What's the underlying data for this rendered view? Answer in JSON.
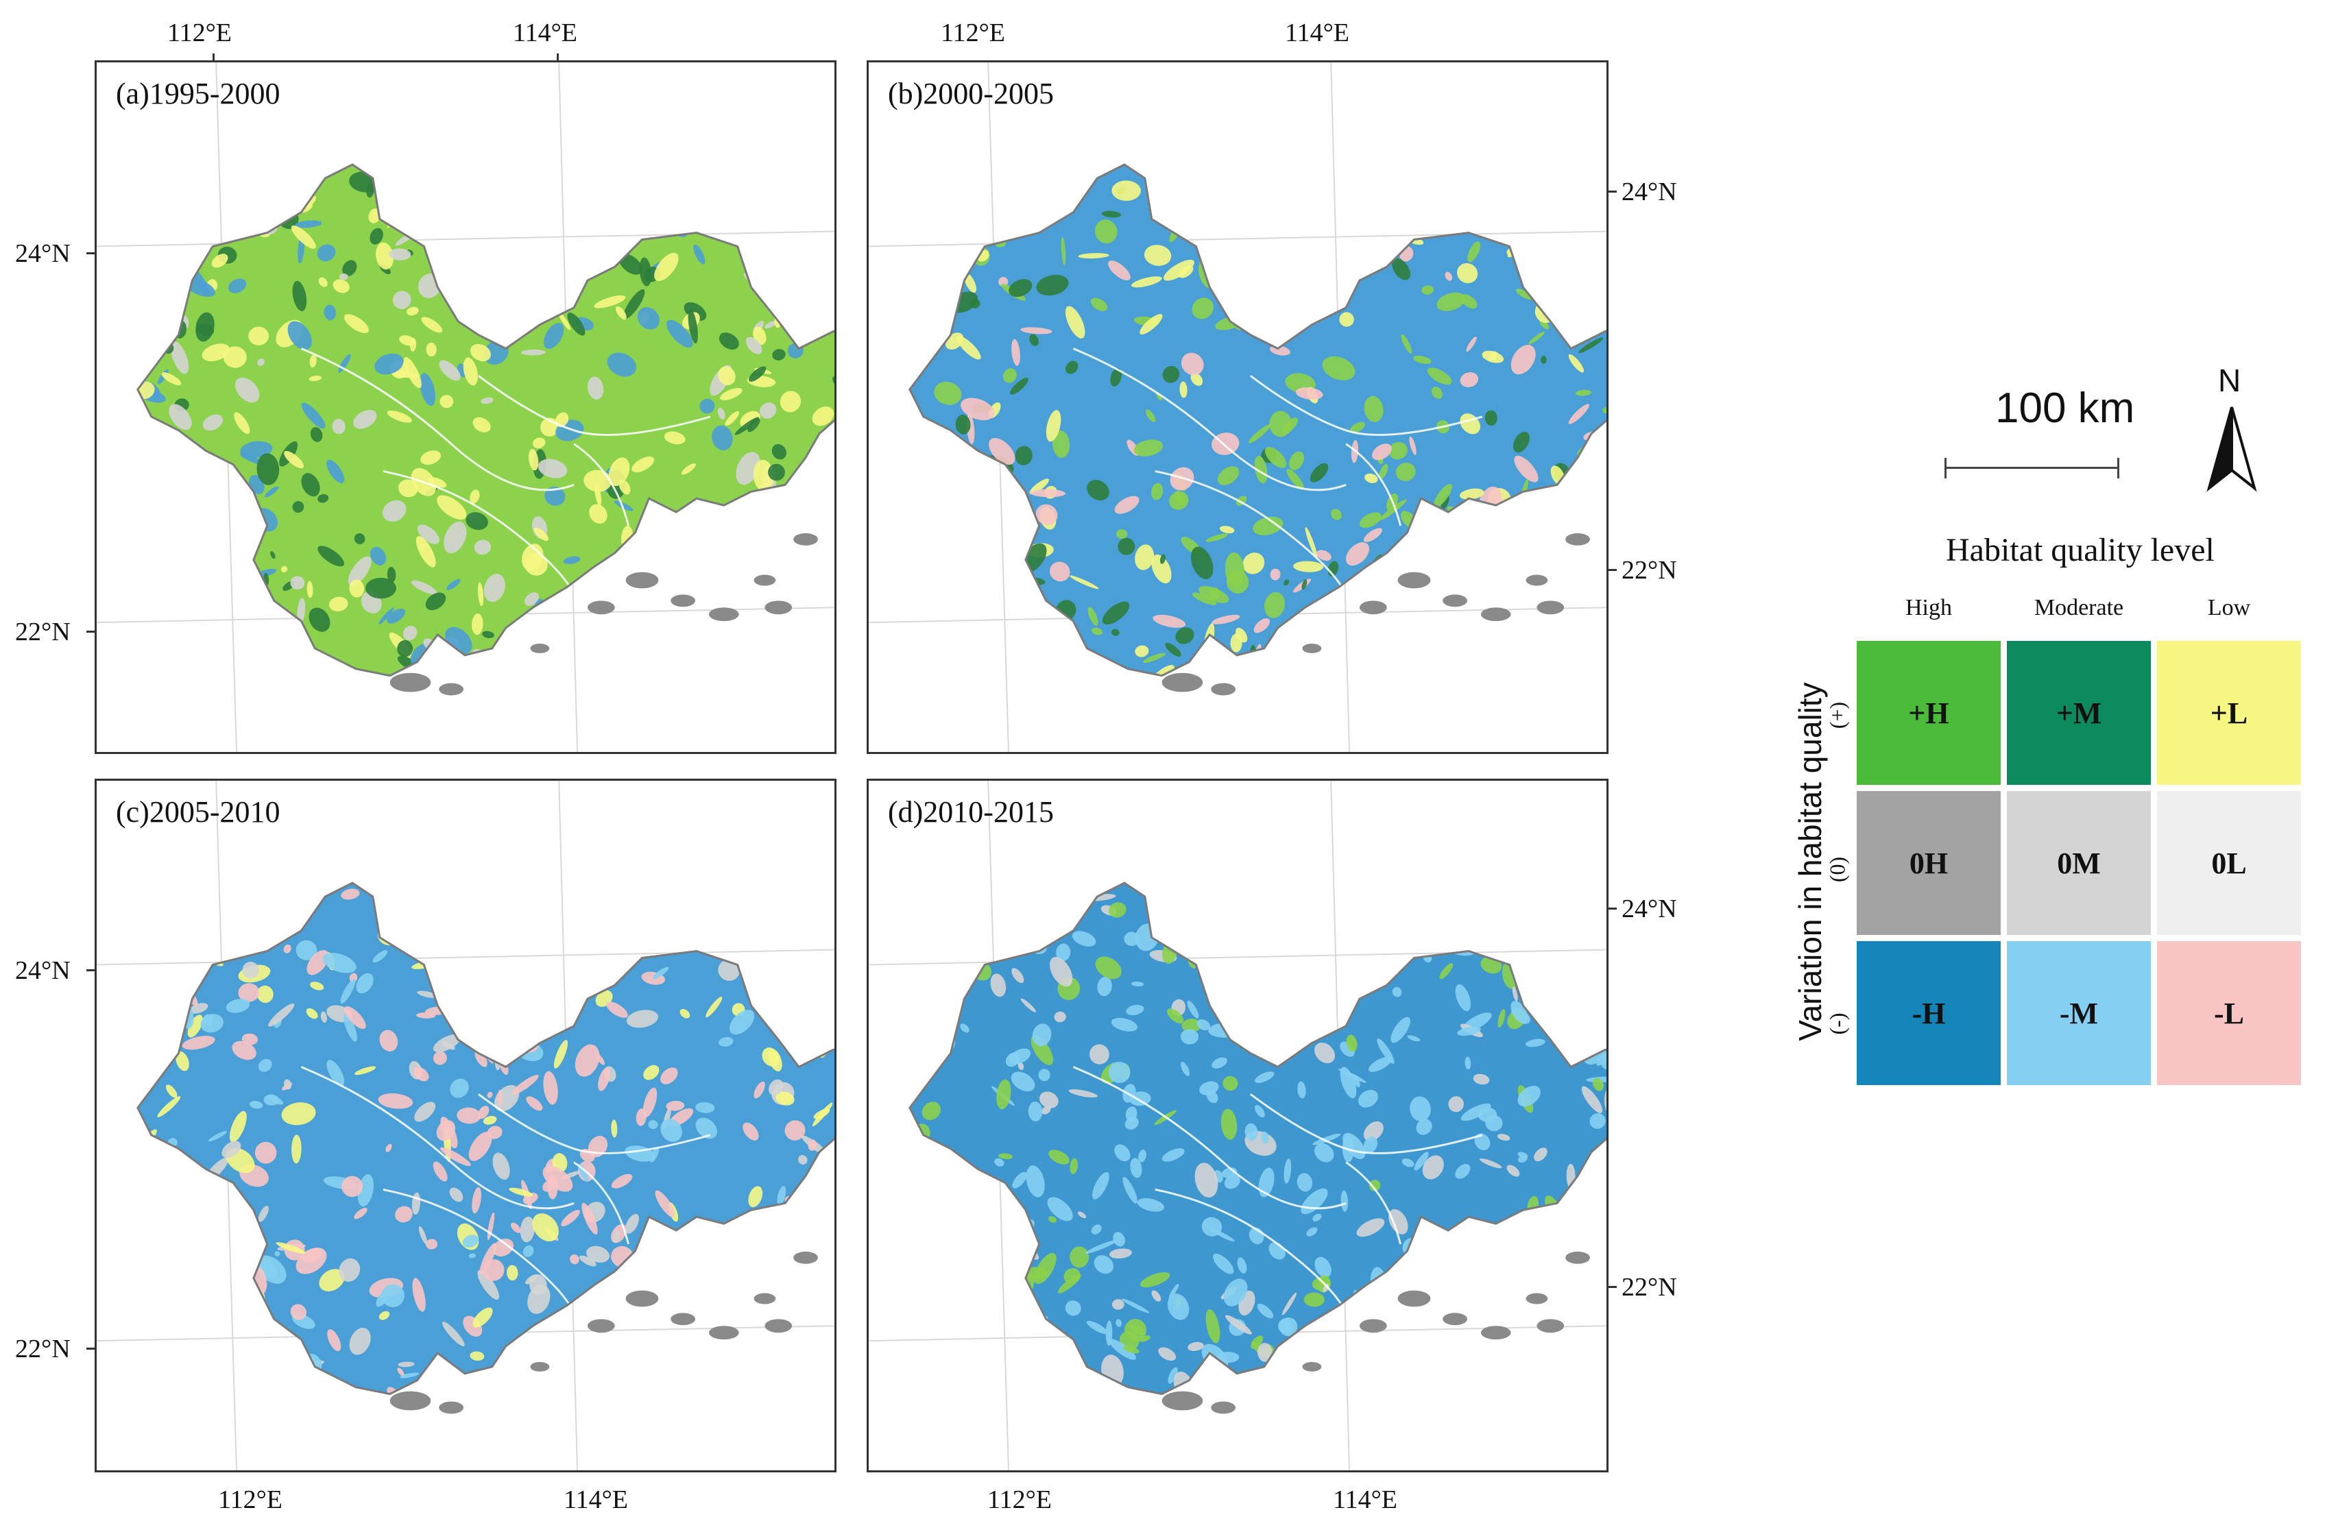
{
  "panels": [
    {
      "label": "(a)1995-2000",
      "scheme": "a"
    },
    {
      "label": "(b)2000-2005",
      "scheme": "b"
    },
    {
      "label": "(c)2005-2010",
      "scheme": "c"
    },
    {
      "label": "(d)2010-2015",
      "scheme": "d"
    }
  ],
  "coords": {
    "lon_112": "112°E",
    "lon_114": "114°E",
    "lat_24": "24°N",
    "lat_22": "22°N"
  },
  "scale_bar": {
    "label": "100 km"
  },
  "north_arrow": {
    "label": "N"
  },
  "legend": {
    "title": "Habitat quality level",
    "columns": [
      "High",
      "Moderate",
      "Low"
    ],
    "rows": [
      "(+)",
      "(0)",
      "(-)"
    ],
    "axis_title": "Variation in habitat quality",
    "cells": [
      {
        "code": "+H",
        "color": "#4dbb3a"
      },
      {
        "code": "+M",
        "color": "#0e8a5f"
      },
      {
        "code": "+L",
        "color": "#f6f783"
      },
      {
        "code": "0H",
        "color": "#a3a3a3"
      },
      {
        "code": "0M",
        "color": "#d4d4d4"
      },
      {
        "code": "0L",
        "color": "#efefef"
      },
      {
        "code": "-H",
        "color": "#1485b8"
      },
      {
        "code": "-M",
        "color": "#85d0f2"
      },
      {
        "code": "-L",
        "color": "#f8c4c4"
      }
    ]
  },
  "schemes": {
    "a": {
      "base": "#8cd24d",
      "patches": [
        "#f6f783",
        "#4a9fd6",
        "#2e7d3c",
        "#d4d4d4"
      ]
    },
    "b": {
      "base": "#4a9fd6",
      "patches": [
        "#8cd24d",
        "#f8c4c4",
        "#2e7d3c",
        "#f6f783"
      ]
    },
    "c": {
      "base": "#4a9fd6",
      "patches": [
        "#f8c4c4",
        "#f6f783",
        "#85d0f2",
        "#d4d4d4"
      ]
    },
    "d": {
      "base": "#3f97cf",
      "patches": [
        "#85d0f2",
        "#85d0f2",
        "#8cd24d",
        "#d4d4d4"
      ]
    }
  }
}
